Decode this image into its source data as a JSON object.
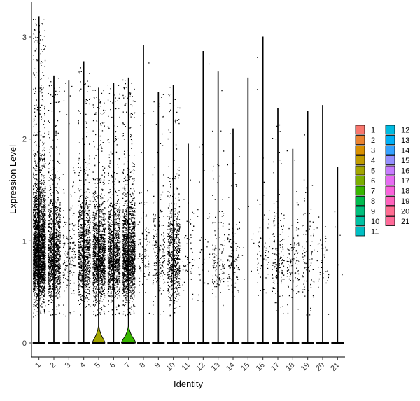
{
  "chart_data": {
    "type": "violin",
    "xlabel": "Identity",
    "ylabel": "Expression Level",
    "ylim": [
      -0.15,
      3.35
    ],
    "yticks": [
      0,
      1,
      2,
      3
    ],
    "categories": [
      "1",
      "2",
      "3",
      "4",
      "5",
      "6",
      "7",
      "8",
      "9",
      "10",
      "11",
      "12",
      "13",
      "14",
      "15",
      "16",
      "17",
      "18",
      "19",
      "20",
      "21"
    ],
    "colors": [
      "#F8766D",
      "#EA8331",
      "#D89000",
      "#C09B00",
      "#A3A500",
      "#7CAE00",
      "#39B600",
      "#00BB4E",
      "#00BF7D",
      "#00C1A3",
      "#00BFC4",
      "#00BAE0",
      "#00B0F6",
      "#35A2FF",
      "#9590FF",
      "#C77CFF",
      "#E76BF3",
      "#FA62DB",
      "#FF62BC",
      "#FF6C91",
      "#FF6A98"
    ],
    "max_values": [
      3.2,
      2.62,
      2.57,
      2.76,
      2.5,
      2.55,
      2.6,
      2.92,
      2.46,
      2.53,
      1.95,
      2.86,
      2.66,
      2.1,
      2.6,
      3.0,
      2.3,
      1.9,
      2.27,
      2.33,
      1.72
    ],
    "expressing_cells": [
      2600,
      1150,
      170,
      900,
      1300,
      1050,
      1500,
      100,
      200,
      650,
      55,
      40,
      130,
      110,
      8,
      60,
      160,
      110,
      90,
      40,
      5
    ],
    "zero_bulge_widths": [
      0.0,
      0.0,
      0.0,
      0.0,
      0.21,
      0.0,
      0.24,
      0.0,
      0.0,
      0.0,
      0.0,
      0.0,
      0.0,
      0.0,
      0.0,
      0.0,
      0.0,
      0.0,
      0.0,
      0.0,
      0.0
    ],
    "legend_labels": [
      "1",
      "2",
      "3",
      "4",
      "5",
      "6",
      "7",
      "8",
      "9",
      "10",
      "11",
      "12",
      "13",
      "14",
      "15",
      "16",
      "17",
      "18",
      "19",
      "20",
      "21"
    ],
    "legend_position": "right",
    "grid": false
  }
}
